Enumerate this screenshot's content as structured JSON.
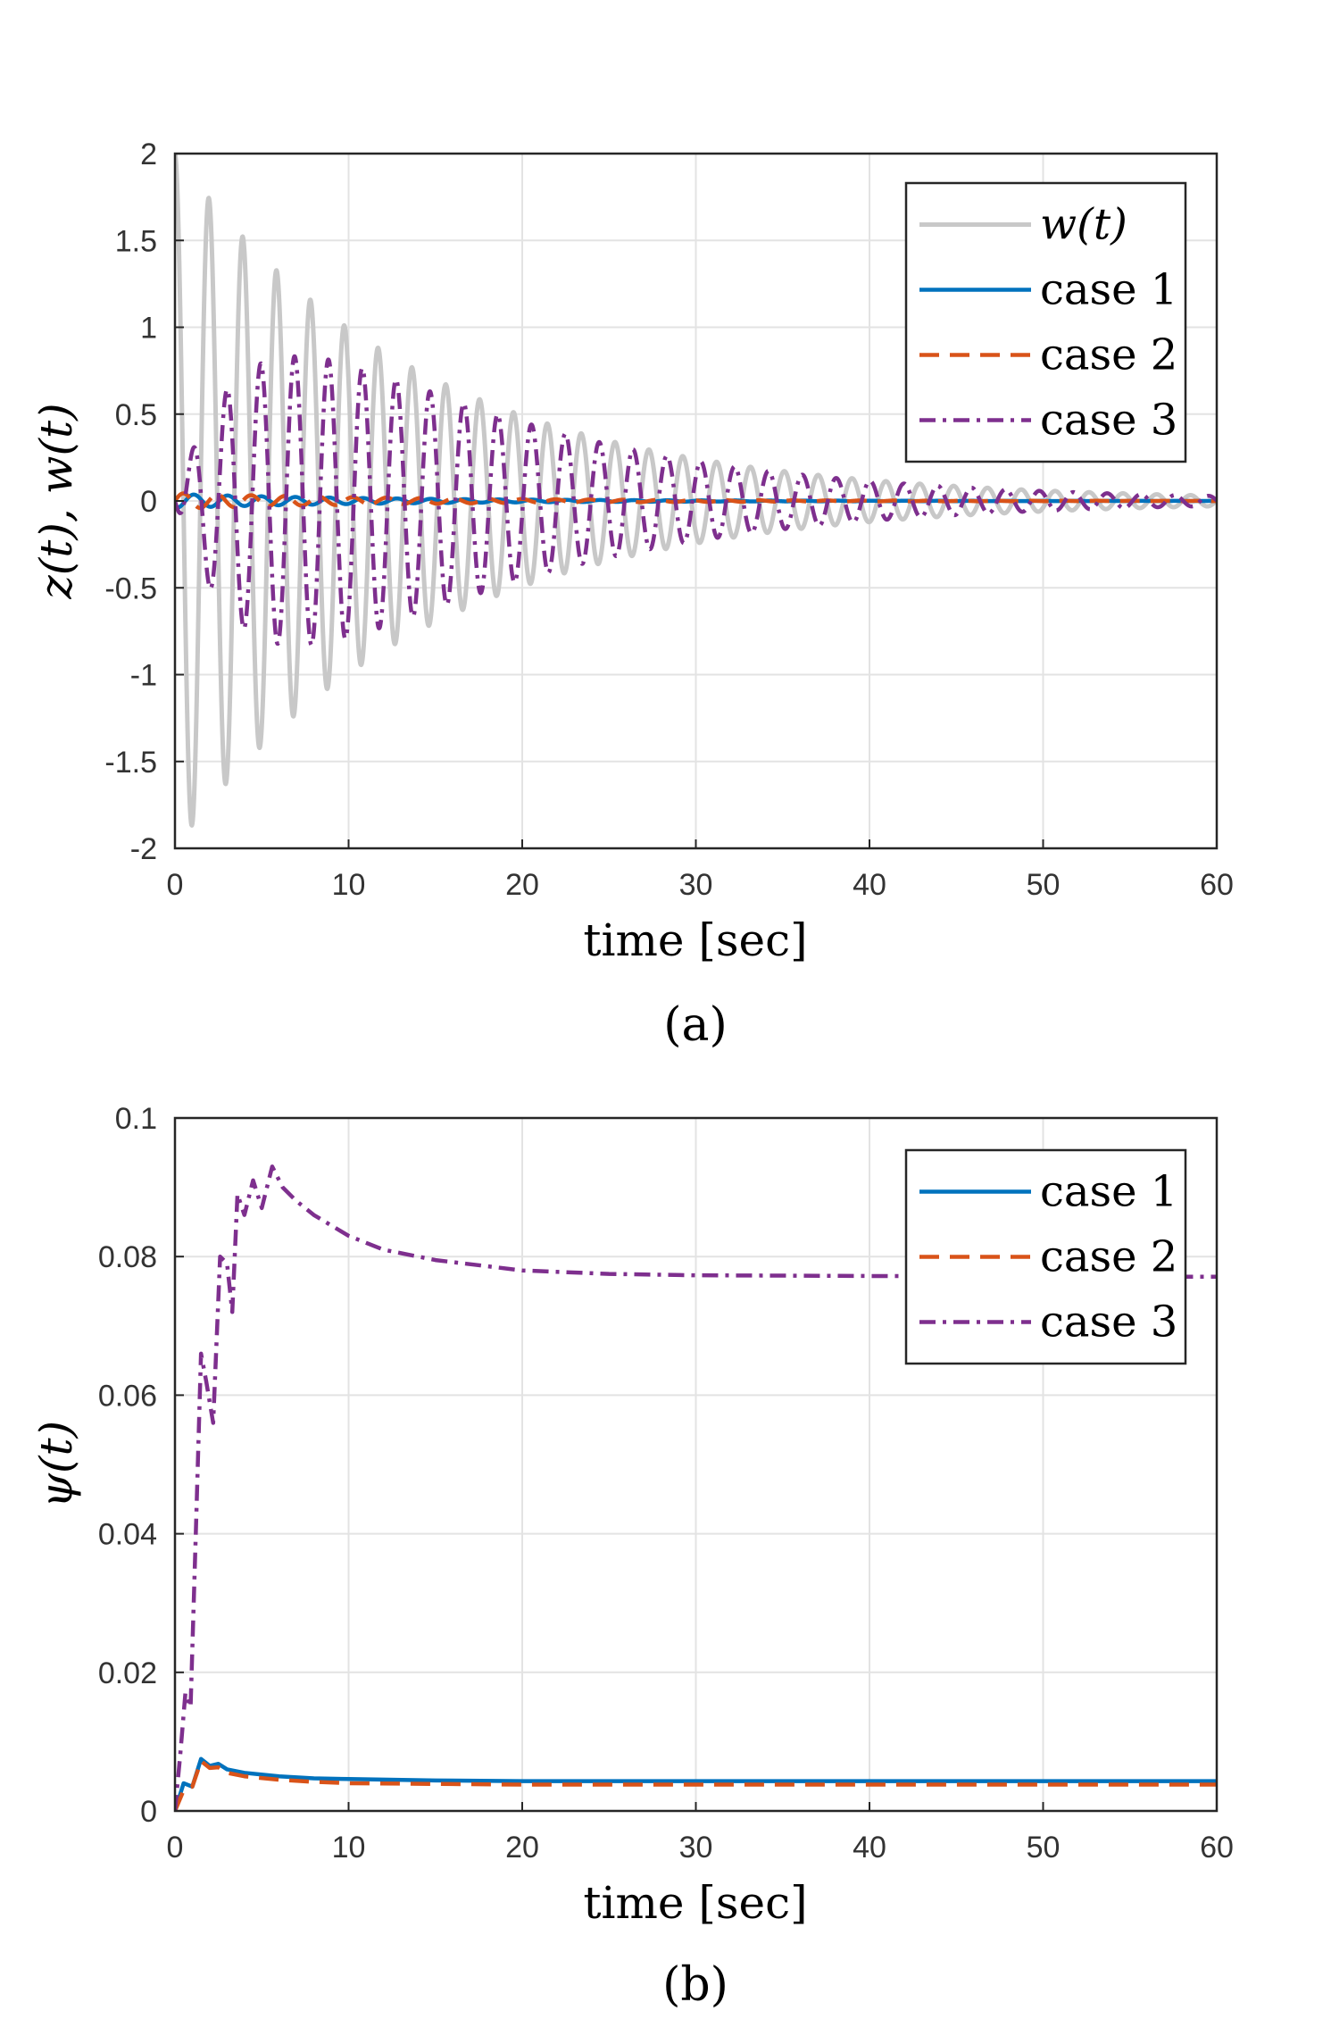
{
  "chart_data": [
    {
      "type": "line",
      "panel": "(a)",
      "xlabel": "time [sec]",
      "ylabel": "z(t), w(t)",
      "xlim": [
        0,
        60
      ],
      "ylim": [
        -2,
        2
      ],
      "xticks": [
        "0",
        "10",
        "20",
        "30",
        "40",
        "50",
        "60"
      ],
      "yticks": [
        "-2",
        "-1.5",
        "-1",
        "-0.5",
        "0",
        "0.5",
        "1",
        "1.5",
        "2"
      ],
      "grid": true,
      "legend_position": "top-right",
      "series": [
        {
          "name": "w(t)",
          "color": "#c8c8c8",
          "style": "solid",
          "model": {
            "kind": "damped_cosine",
            "amplitude": 2,
            "decay_per_sec": 0.07,
            "period_sec": 1.95
          }
        },
        {
          "name": "case 1",
          "color": "#0072bd",
          "style": "solid",
          "model": {
            "kind": "damped_sine",
            "amplitude": 0.04,
            "decay_per_sec": 0.08,
            "period_sec": 1.95,
            "phase_sec": -0.6
          }
        },
        {
          "name": "case 2",
          "color": "#d95319",
          "style": "dashed",
          "model": {
            "kind": "damped_sine",
            "amplitude": 0.045,
            "decay_per_sec": 0.07,
            "period_sec": 1.95,
            "phase_sec": 0
          }
        },
        {
          "name": "case 3",
          "color": "#7e2f8e",
          "style": "dashdot",
          "model": {
            "kind": "rise_damped_sine",
            "amplitude": 1.0,
            "rise_per_sec": 0.18,
            "decay_per_sec": 0.07,
            "period_sec": 1.95,
            "phase_sec": -0.55
          }
        }
      ]
    },
    {
      "type": "line",
      "panel": "(b)",
      "xlabel": "time [sec]",
      "ylabel": "ψ(t)",
      "xlim": [
        0,
        60
      ],
      "ylim": [
        0,
        0.1
      ],
      "xticks": [
        "0",
        "10",
        "20",
        "30",
        "40",
        "50",
        "60"
      ],
      "yticks": [
        "0",
        "0.02",
        "0.04",
        "0.06",
        "0.08",
        "0.1"
      ],
      "grid": true,
      "legend_position": "top-right",
      "series": [
        {
          "name": "case 1",
          "color": "#0072bd",
          "style": "solid",
          "points": [
            [
              0,
              0
            ],
            [
              0.5,
              0.004
            ],
            [
              1.0,
              0.0035
            ],
            [
              1.5,
              0.0075
            ],
            [
              2.0,
              0.0065
            ],
            [
              2.5,
              0.0068
            ],
            [
              3.0,
              0.006
            ],
            [
              4,
              0.0055
            ],
            [
              6,
              0.005
            ],
            [
              8,
              0.0047
            ],
            [
              10,
              0.0046
            ],
            [
              15,
              0.0044
            ],
            [
              20,
              0.0043
            ],
            [
              30,
              0.0043
            ],
            [
              40,
              0.0043
            ],
            [
              50,
              0.0043
            ],
            [
              60,
              0.0043
            ]
          ]
        },
        {
          "name": "case 2",
          "color": "#d95319",
          "style": "dashed",
          "points": [
            [
              0,
              0
            ],
            [
              0.5,
              0.003
            ],
            [
              1.0,
              0.0035
            ],
            [
              1.5,
              0.0072
            ],
            [
              2.0,
              0.0062
            ],
            [
              2.5,
              0.0063
            ],
            [
              3.0,
              0.0055
            ],
            [
              4,
              0.005
            ],
            [
              6,
              0.0045
            ],
            [
              8,
              0.0042
            ],
            [
              10,
              0.004
            ],
            [
              15,
              0.0039
            ],
            [
              20,
              0.0038
            ],
            [
              30,
              0.0038
            ],
            [
              40,
              0.0038
            ],
            [
              50,
              0.0038
            ],
            [
              60,
              0.0038
            ]
          ]
        },
        {
          "name": "case 3",
          "color": "#7e2f8e",
          "style": "dashdot",
          "points": [
            [
              0,
              0
            ],
            [
              0.3,
              0.008
            ],
            [
              0.6,
              0.017
            ],
            [
              0.9,
              0.015
            ],
            [
              1.2,
              0.04
            ],
            [
              1.5,
              0.066
            ],
            [
              1.8,
              0.062
            ],
            [
              2.2,
              0.056
            ],
            [
              2.6,
              0.08
            ],
            [
              3.0,
              0.079
            ],
            [
              3.3,
              0.072
            ],
            [
              3.6,
              0.089
            ],
            [
              4.0,
              0.086
            ],
            [
              4.5,
              0.091
            ],
            [
              5.0,
              0.087
            ],
            [
              5.6,
              0.093
            ],
            [
              6.2,
              0.09
            ],
            [
              7,
              0.088
            ],
            [
              8,
              0.086
            ],
            [
              10,
              0.083
            ],
            [
              12,
              0.081
            ],
            [
              15,
              0.0795
            ],
            [
              20,
              0.078
            ],
            [
              25,
              0.0775
            ],
            [
              30,
              0.0773
            ],
            [
              40,
              0.0772
            ],
            [
              50,
              0.0771
            ],
            [
              60,
              0.0771
            ]
          ]
        }
      ]
    }
  ]
}
